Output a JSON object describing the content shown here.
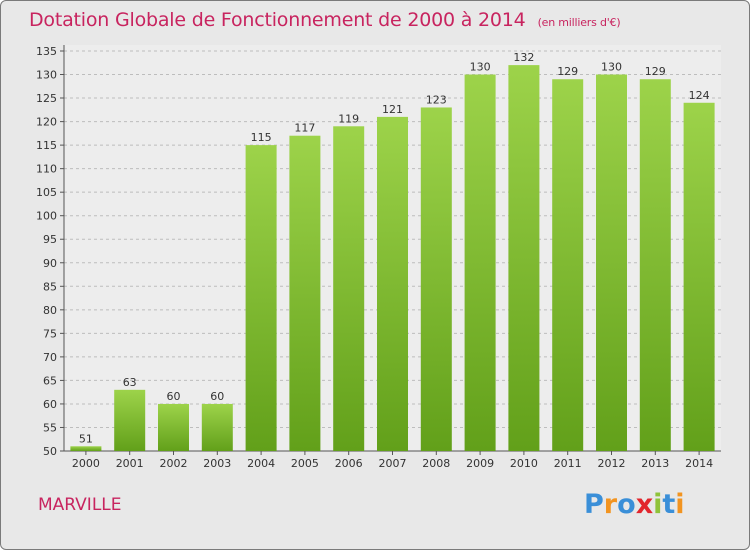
{
  "chart_data": {
    "type": "bar",
    "title": "Dotation Globale de Fonctionnement de 2000 à 2014",
    "subtitle": "(en milliers d'€)",
    "categories": [
      "2000",
      "2001",
      "2002",
      "2003",
      "2004",
      "2005",
      "2006",
      "2007",
      "2008",
      "2009",
      "2010",
      "2011",
      "2012",
      "2013",
      "2014"
    ],
    "values": [
      51,
      63,
      60,
      60,
      115,
      117,
      119,
      121,
      123,
      130,
      132,
      129,
      130,
      129,
      124
    ],
    "ylim": [
      50,
      135
    ],
    "ytick_step": 5,
    "grid": "horizontal dashed",
    "bar_color": "#7cb52e"
  },
  "footer": {
    "commune": "MARVILLE",
    "brand_letters": [
      {
        "ch": "P",
        "color": "#3a8fd8"
      },
      {
        "ch": "r",
        "color": "#f29420"
      },
      {
        "ch": "o",
        "color": "#3a8fd8"
      },
      {
        "ch": "x",
        "color": "#e2262d"
      },
      {
        "ch": "i",
        "color": "#8fc33a"
      },
      {
        "ch": "t",
        "color": "#3a8fd8"
      },
      {
        "ch": "i",
        "color": "#f29420"
      }
    ]
  }
}
